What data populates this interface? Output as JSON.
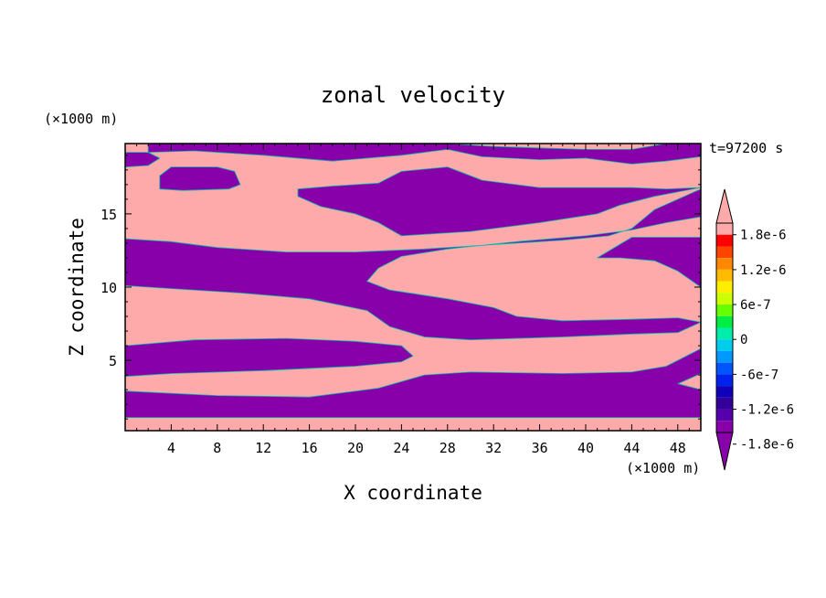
{
  "chart_data": {
    "type": "heatmap",
    "title": "zonal velocity",
    "xlabel": "X coordinate",
    "ylabel": "Z coordinate",
    "x_unit": "(×1000 m)",
    "y_unit": "(×1000 m)",
    "time_label": "t=97200 s",
    "xlim": [
      0,
      50
    ],
    "ylim": [
      0.2,
      19.8
    ],
    "x_ticks": [
      4,
      8,
      12,
      16,
      20,
      24,
      28,
      32,
      36,
      40,
      44,
      48
    ],
    "x_tick_labels": [
      "4",
      "8",
      "12",
      "16",
      "20",
      "24",
      "28",
      "32",
      "36",
      "40",
      "44",
      "48"
    ],
    "y_ticks": [
      5,
      10,
      15
    ],
    "y_tick_labels": [
      "5",
      "10",
      "15"
    ],
    "colorbar": {
      "levels": [
        "1.8e-6",
        "1.2e-6",
        "6e-7",
        "0",
        "-6e-7",
        "-1.2e-6",
        "-1.8e-6"
      ],
      "colors": [
        "#ffaaaa",
        "#ff0000",
        "#ff4400",
        "#ff8800",
        "#ffbb00",
        "#ffee00",
        "#ccff00",
        "#66ff00",
        "#00ee44",
        "#00eeaa",
        "#00ccee",
        "#0099ff",
        "#0055ff",
        "#0022ee",
        "#1100bb",
        "#330099",
        "#5500aa",
        "#8800aa"
      ],
      "extend": "both"
    },
    "positive_color": "#ffaaaa",
    "negative_color": "#8800aa",
    "negative_regions": [
      {
        "name": "band-z1",
        "points": [
          [
            0,
            2.9
          ],
          [
            8,
            2.6
          ],
          [
            16,
            2.5
          ],
          [
            22,
            3.1
          ],
          [
            26,
            4.0
          ],
          [
            30,
            4.2
          ],
          [
            38,
            4.1
          ],
          [
            44,
            4.2
          ],
          [
            47,
            4.6
          ],
          [
            50,
            5.8
          ],
          [
            50,
            4.1
          ],
          [
            48,
            3.4
          ],
          [
            50,
            3.0
          ],
          [
            50,
            1.1
          ],
          [
            0,
            1.1
          ]
        ]
      },
      {
        "name": "band-z5",
        "points": [
          [
            0,
            6.0
          ],
          [
            6,
            6.4
          ],
          [
            14,
            6.5
          ],
          [
            20,
            6.3
          ],
          [
            24,
            6.0
          ],
          [
            25,
            5.3
          ],
          [
            24,
            4.9
          ],
          [
            20,
            4.6
          ],
          [
            12,
            4.3
          ],
          [
            4,
            4.1
          ],
          [
            0,
            3.9
          ]
        ]
      },
      {
        "name": "band-z12",
        "points": [
          [
            0,
            13.3
          ],
          [
            4,
            13.1
          ],
          [
            8,
            12.7
          ],
          [
            14,
            12.4
          ],
          [
            20,
            12.4
          ],
          [
            26,
            12.6
          ],
          [
            32,
            12.9
          ],
          [
            38,
            13.2
          ],
          [
            42,
            13.5
          ],
          [
            44,
            14.0
          ],
          [
            46,
            15.3
          ],
          [
            50,
            16.7
          ],
          [
            50,
            14.8
          ],
          [
            47,
            14.4
          ],
          [
            44,
            13.9
          ],
          [
            40,
            13.5
          ],
          [
            34,
            13.1
          ],
          [
            28,
            12.6
          ],
          [
            24,
            12.1
          ],
          [
            22,
            11.3
          ],
          [
            21,
            10.4
          ],
          [
            23,
            9.8
          ],
          [
            28,
            9.2
          ],
          [
            32,
            8.6
          ],
          [
            34,
            8.0
          ],
          [
            38,
            7.7
          ],
          [
            44,
            7.8
          ],
          [
            48,
            7.9
          ],
          [
            50,
            7.6
          ],
          [
            48,
            6.9
          ],
          [
            44,
            6.8
          ],
          [
            38,
            6.6
          ],
          [
            30,
            6.4
          ],
          [
            26,
            6.6
          ],
          [
            23,
            7.3
          ],
          [
            21,
            8.4
          ],
          [
            16,
            9.2
          ],
          [
            10,
            9.6
          ],
          [
            4,
            9.9
          ],
          [
            0,
            10.1
          ]
        ]
      },
      {
        "name": "band-z13b",
        "points": [
          [
            41,
            12.0
          ],
          [
            44,
            13.4
          ],
          [
            50,
            13.4
          ],
          [
            50,
            10.0
          ],
          [
            48,
            11.1
          ],
          [
            46,
            11.8
          ],
          [
            43,
            12.0
          ]
        ]
      },
      {
        "name": "blob-z17",
        "points": [
          [
            15,
            16.7
          ],
          [
            18,
            16.9
          ],
          [
            22,
            17.1
          ],
          [
            24,
            17.9
          ],
          [
            28,
            18.2
          ],
          [
            31,
            17.3
          ],
          [
            36,
            16.8
          ],
          [
            40,
            16.8
          ],
          [
            44,
            16.8
          ],
          [
            47,
            16.7
          ],
          [
            50,
            16.8
          ],
          [
            46,
            16.2
          ],
          [
            43,
            15.6
          ],
          [
            41,
            15.0
          ],
          [
            36,
            14.4
          ],
          [
            30,
            13.8
          ],
          [
            24,
            13.5
          ],
          [
            22,
            14.4
          ],
          [
            20,
            15.0
          ],
          [
            17,
            15.5
          ],
          [
            15,
            16.2
          ]
        ]
      },
      {
        "name": "blob-z18",
        "points": [
          [
            3,
            16.7
          ],
          [
            5,
            16.6
          ],
          [
            9,
            16.7
          ],
          [
            10,
            17.0
          ],
          [
            9.5,
            17.9
          ],
          [
            8,
            18.2
          ],
          [
            4,
            18.2
          ],
          [
            3,
            17.6
          ]
        ]
      },
      {
        "name": "strip-top",
        "points": [
          [
            2,
            19.2
          ],
          [
            6,
            19.3
          ],
          [
            12,
            19.0
          ],
          [
            18,
            18.6
          ],
          [
            24,
            19.0
          ],
          [
            28,
            19.4
          ],
          [
            31,
            18.9
          ],
          [
            36,
            18.7
          ],
          [
            40,
            18.8
          ],
          [
            44,
            18.4
          ],
          [
            47,
            18.6
          ],
          [
            50,
            18.9
          ],
          [
            50,
            19.8
          ],
          [
            47,
            19.8
          ],
          [
            44,
            19.4
          ],
          [
            40,
            19.4
          ],
          [
            36,
            19.5
          ],
          [
            32,
            19.6
          ],
          [
            28,
            19.8
          ],
          [
            2,
            19.8
          ]
        ]
      },
      {
        "name": "strip-top-left",
        "points": [
          [
            0,
            18.2
          ],
          [
            2,
            18.3
          ],
          [
            3,
            18.8
          ],
          [
            2,
            19.2
          ],
          [
            0,
            19.2
          ]
        ]
      }
    ]
  }
}
